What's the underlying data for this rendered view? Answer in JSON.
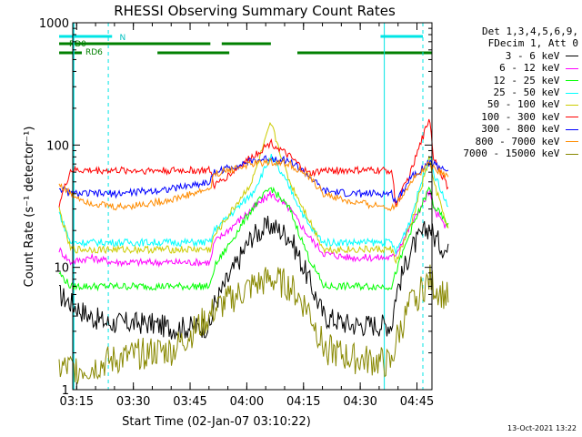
{
  "chart_data": {
    "type": "line",
    "title": "RHESSI Observing Summary Count Rates",
    "xlabel": "Start Time (02-Jan-07 03:10:22)",
    "ylabel": "Count Rate (s⁻¹ detector⁻¹)",
    "yscale": "log",
    "ylim": [
      1,
      1000
    ],
    "xlim_minutes": [
      3.6,
      98.6
    ],
    "x_ticks": [
      "03:15",
      "03:30",
      "03:45",
      "04:00",
      "04:15",
      "04:30",
      "04:45"
    ],
    "y_ticks": [
      "1",
      "10",
      "100",
      "1000"
    ],
    "legend_header": [
      "Det 1,3,4,5,6,9,",
      "FDecim 1, Att 0"
    ],
    "flag_labels": [
      "N",
      "RD0",
      "RD6"
    ],
    "series": [
      {
        "name": "3 - 6 keV",
        "color": "#000000",
        "x": [
          0,
          8,
          13,
          23,
          30,
          40,
          41,
          51,
          56,
          61,
          66,
          70,
          77,
          84,
          88,
          89,
          93,
          98,
          99,
          103
        ],
        "y": [
          6,
          4,
          3.5,
          3.5,
          3.2,
          3.3,
          5,
          18,
          22,
          18,
          8,
          4,
          3.4,
          3.4,
          3.4,
          6,
          14,
          22,
          18,
          13
        ]
      },
      {
        "name": "6 - 12 keV",
        "color": "#ff00ff",
        "x": [
          0,
          3,
          8,
          15,
          23,
          30,
          40,
          41,
          51,
          56,
          61,
          66,
          70,
          77,
          84,
          88,
          89,
          93,
          98,
          99,
          103
        ],
        "y": [
          14,
          11,
          12,
          11,
          11,
          11,
          11,
          16,
          30,
          40,
          30,
          18,
          13,
          12,
          12,
          12,
          13,
          22,
          42,
          30,
          20
        ]
      },
      {
        "name": "12 - 25 keV",
        "color": "#00ff00",
        "x": [
          0,
          3,
          8,
          15,
          23,
          30,
          40,
          41,
          51,
          56,
          61,
          66,
          70,
          77,
          84,
          88,
          89,
          93,
          98,
          99,
          103
        ],
        "y": [
          9,
          7,
          7,
          7,
          7,
          7,
          7,
          10,
          30,
          45,
          30,
          12,
          7,
          7,
          7,
          7,
          9,
          20,
          45,
          32,
          22
        ]
      },
      {
        "name": "25 - 50 keV",
        "color": "#00ffff",
        "x": [
          0,
          3,
          8,
          15,
          23,
          30,
          40,
          41,
          51,
          56,
          61,
          66,
          70,
          77,
          84,
          88,
          89,
          93,
          98,
          99,
          103
        ],
        "y": [
          28,
          16,
          16,
          16,
          16,
          16,
          16,
          20,
          40,
          80,
          45,
          22,
          16,
          16,
          16,
          16,
          13,
          25,
          85,
          60,
          30
        ]
      },
      {
        "name": "50 - 100 keV",
        "color": "#cccc00",
        "x": [
          0,
          3,
          8,
          15,
          23,
          30,
          40,
          41,
          51,
          56,
          61,
          66,
          70,
          77,
          84,
          88,
          89,
          93,
          98,
          99,
          103
        ],
        "y": [
          30,
          14,
          14,
          14,
          14,
          14,
          14,
          18,
          50,
          150,
          50,
          25,
          14,
          14,
          14,
          14,
          11,
          22,
          80,
          50,
          20
        ]
      },
      {
        "name": "100 - 300 keV",
        "color": "#ff0000",
        "x": [
          0,
          3,
          8,
          15,
          23,
          30,
          40,
          41,
          51,
          56,
          61,
          66,
          70,
          77,
          84,
          88,
          89,
          93,
          98,
          99,
          103
        ],
        "y": [
          33,
          62,
          62,
          62,
          62,
          62,
          62,
          46,
          80,
          105,
          80,
          58,
          62,
          62,
          62,
          62,
          32,
          60,
          170,
          80,
          44
        ]
      },
      {
        "name": "300 - 800 keV",
        "color": "#0000ff",
        "x": [
          0,
          3,
          8,
          15,
          23,
          30,
          40,
          41,
          51,
          56,
          61,
          66,
          70,
          77,
          84,
          88,
          89,
          93,
          98,
          99,
          103
        ],
        "y": [
          45,
          40,
          40,
          40,
          42,
          44,
          50,
          60,
          74,
          78,
          74,
          56,
          42,
          40,
          40,
          40,
          34,
          55,
          72,
          70,
          62
        ]
      },
      {
        "name": "800 - 7000 keV",
        "color": "#ff8c00",
        "x": [
          0,
          3,
          8,
          15,
          23,
          30,
          40,
          41,
          51,
          56,
          61,
          66,
          70,
          77,
          84,
          88,
          89,
          93,
          98,
          99,
          103
        ],
        "y": [
          48,
          40,
          34,
          31,
          33,
          36,
          44,
          58,
          70,
          73,
          70,
          55,
          40,
          34,
          32,
          31,
          32,
          50,
          72,
          66,
          55
        ]
      },
      {
        "name": "7000 - 15000 keV",
        "color": "#888800",
        "x": [
          0,
          8,
          13,
          23,
          30,
          40,
          41,
          51,
          56,
          61,
          66,
          70,
          77,
          84,
          88,
          89,
          93,
          98,
          99,
          103
        ],
        "y": [
          1.5,
          1.5,
          1.7,
          2.0,
          2.1,
          4,
          4.5,
          7,
          8,
          7,
          4.5,
          2.2,
          1.8,
          1.7,
          1.6,
          2.5,
          5,
          8,
          7,
          5.5
        ]
      }
    ]
  }
}
